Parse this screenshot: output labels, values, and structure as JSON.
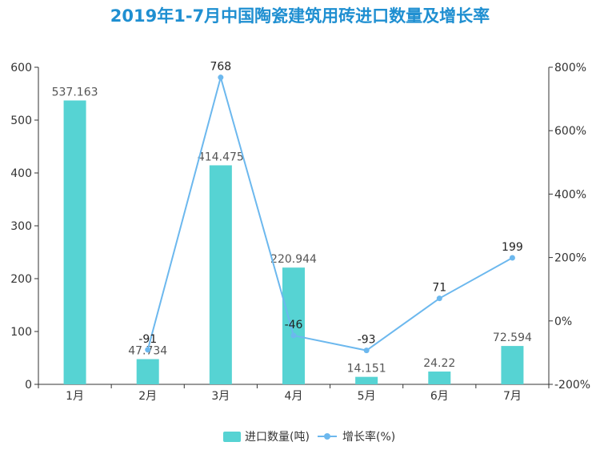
{
  "chart_data": {
    "type": "bar",
    "title": "2019年1-7月中国陶瓷建筑用砖进口数量及增长率",
    "categories": [
      "1月",
      "2月",
      "3月",
      "4月",
      "5月",
      "6月",
      "7月"
    ],
    "series": [
      {
        "name": "进口数量(吨)",
        "type": "bar",
        "axis": "left",
        "values": [
          537.163,
          47.734,
          414.475,
          220.944,
          14.151,
          24.22,
          72.594
        ],
        "labels": [
          "537.163",
          "47.734",
          "414.475",
          "220.944",
          "14.151",
          "24.22",
          "72.594"
        ]
      },
      {
        "name": "增长率(%)",
        "type": "line",
        "axis": "right",
        "values": [
          null,
          -91,
          768,
          -46,
          -93,
          71,
          199
        ],
        "labels": [
          "",
          "-91",
          "768",
          "-46",
          "-93",
          "71",
          "199"
        ]
      }
    ],
    "y_left": {
      "ylim": [
        0,
        600
      ],
      "ticks": [
        "0",
        "100",
        "200",
        "300",
        "400",
        "500",
        "600"
      ],
      "tick_values": [
        0,
        100,
        200,
        300,
        400,
        500,
        600
      ]
    },
    "y_right": {
      "ylim": [
        -200,
        800
      ],
      "ticks": [
        "-200%",
        "0%",
        "200%",
        "400%",
        "600%",
        "800%"
      ],
      "tick_values": [
        -200,
        0,
        200,
        400,
        600,
        800
      ]
    },
    "grid": false,
    "legend_position": "bottom",
    "colors": {
      "bar": "#56d3d3",
      "line": "#6cb8ee",
      "axis": "#333333",
      "title": "#1f8fd1"
    }
  }
}
